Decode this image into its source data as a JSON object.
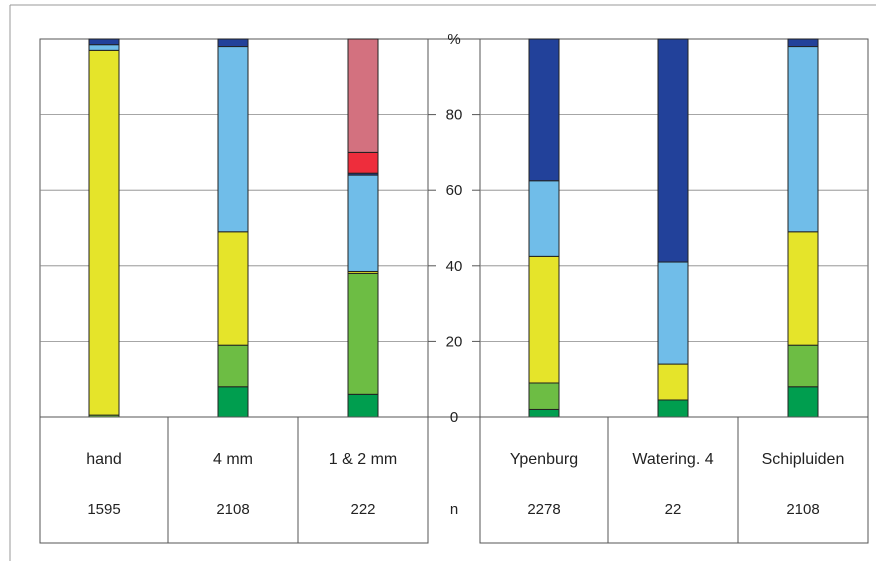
{
  "chart_data": {
    "type": "bar",
    "stacked": true,
    "title": "",
    "ylabel": "%",
    "ylim": [
      0,
      100
    ],
    "yticks": [
      "0",
      "20",
      "40",
      "60",
      "80",
      "%"
    ],
    "grid": true,
    "table_row_label": "n",
    "groups": [
      {
        "bars": [
          {
            "category": "hand",
            "n": "1595",
            "segments": [
              {
                "color": "#009e4f",
                "value": 0
              },
              {
                "color": "#6dbd44",
                "value": 0.5
              },
              {
                "color": "#e5e42a",
                "value": 96.5
              },
              {
                "color": "#70bde9",
                "value": 1.5
              },
              {
                "color": "#22419a",
                "value": 1.5
              }
            ]
          },
          {
            "category": "4 mm",
            "n": "2108",
            "segments": [
              {
                "color": "#009e4f",
                "value": 8
              },
              {
                "color": "#6dbd44",
                "value": 11
              },
              {
                "color": "#e5e42a",
                "value": 30
              },
              {
                "color": "#70bde9",
                "value": 49
              },
              {
                "color": "#22419a",
                "value": 2
              }
            ]
          },
          {
            "category": "1 & 2 mm",
            "n": "222",
            "segments": [
              {
                "color": "#009e4f",
                "value": 6
              },
              {
                "color": "#6dbd44",
                "value": 32
              },
              {
                "color": "#e5e42a",
                "value": 0.5
              },
              {
                "color": "#70bde9",
                "value": 25.5
              },
              {
                "color": "#22419a",
                "value": 0.5
              },
              {
                "color": "#ee2d3c",
                "value": 5.5
              },
              {
                "color": "#d3717f",
                "value": 30
              }
            ]
          }
        ]
      },
      {
        "bars": [
          {
            "category": "Ypenburg",
            "n": "2278",
            "segments": [
              {
                "color": "#009e4f",
                "value": 2
              },
              {
                "color": "#6dbd44",
                "value": 7
              },
              {
                "color": "#e5e42a",
                "value": 33.5
              },
              {
                "color": "#70bde9",
                "value": 20
              },
              {
                "color": "#22419a",
                "value": 37.5
              }
            ]
          },
          {
            "category": "Watering. 4",
            "n": "22",
            "segments": [
              {
                "color": "#009e4f",
                "value": 4.5
              },
              {
                "color": "#6dbd44",
                "value": 0
              },
              {
                "color": "#e5e42a",
                "value": 9.5
              },
              {
                "color": "#70bde9",
                "value": 27
              },
              {
                "color": "#22419a",
                "value": 59
              }
            ]
          },
          {
            "category": "Schipluiden",
            "n": "2108",
            "segments": [
              {
                "color": "#009e4f",
                "value": 8
              },
              {
                "color": "#6dbd44",
                "value": 11
              },
              {
                "color": "#e5e42a",
                "value": 30
              },
              {
                "color": "#70bde9",
                "value": 49
              },
              {
                "color": "#22419a",
                "value": 2
              }
            ]
          }
        ]
      }
    ]
  }
}
